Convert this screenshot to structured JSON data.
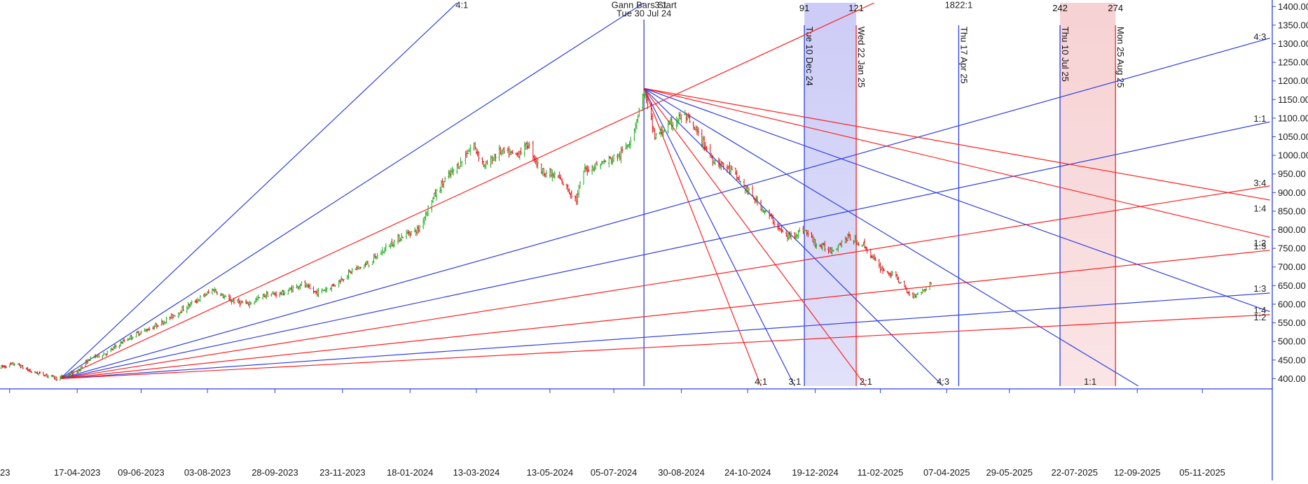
{
  "chart_data": {
    "type": "candlestick",
    "title": "",
    "xlabel": "",
    "ylabel": "",
    "ylim": [
      380,
      1410
    ],
    "x_date_range": [
      "2023-02-12",
      "2026-01-02"
    ],
    "grid": false,
    "y_ticks": [
      "1400.00",
      "1350.00",
      "1300.00",
      "1250.00",
      "1200.00",
      "1150.00",
      "1100.00",
      "1050.00",
      "1000.00",
      "950.00",
      "900.00",
      "850.00",
      "800.00",
      "750.00",
      "700.00",
      "650.00",
      "600.00",
      "550.00",
      "500.00",
      "450.00",
      "400.00"
    ],
    "x_ticks": [
      {
        "date": "2023-02-20",
        "label": "23"
      },
      {
        "date": "2023-04-17",
        "label": "17-04-2023"
      },
      {
        "date": "2023-06-09",
        "label": "09-06-2023"
      },
      {
        "date": "2023-08-03",
        "label": "03-08-2023"
      },
      {
        "date": "2023-09-28",
        "label": "28-09-2023"
      },
      {
        "date": "2023-11-23",
        "label": "23-11-2023"
      },
      {
        "date": "2024-01-18",
        "label": "18-01-2024"
      },
      {
        "date": "2024-03-13",
        "label": "13-03-2024"
      },
      {
        "date": "2024-05-13",
        "label": "13-05-2024"
      },
      {
        "date": "2024-07-05",
        "label": "05-07-2024"
      },
      {
        "date": "2024-08-30",
        "label": "30-08-2024"
      },
      {
        "date": "2024-10-24",
        "label": "24-10-2024"
      },
      {
        "date": "2024-12-19",
        "label": "19-12-2024"
      },
      {
        "date": "2025-02-11",
        "label": "11-02-2025"
      },
      {
        "date": "2025-04-07",
        "label": "07-04-2025"
      },
      {
        "date": "2025-05-29",
        "label": "29-05-2025"
      },
      {
        "date": "2025-07-22",
        "label": "22-07-2025"
      },
      {
        "date": "2025-09-12",
        "label": "12-09-2025"
      },
      {
        "date": "2025-11-05",
        "label": "05-11-2025"
      }
    ],
    "price_path": [
      [
        "2023-02-12",
        430
      ],
      [
        "2023-02-25",
        440
      ],
      [
        "2023-03-10",
        418
      ],
      [
        "2023-03-22",
        410
      ],
      [
        "2023-04-01",
        400
      ],
      [
        "2023-04-17",
        420
      ],
      [
        "2023-04-28",
        455
      ],
      [
        "2023-05-12",
        470
      ],
      [
        "2023-05-25",
        500
      ],
      [
        "2023-06-05",
        520
      ],
      [
        "2023-06-20",
        540
      ],
      [
        "2023-07-05",
        568
      ],
      [
        "2023-07-20",
        600
      ],
      [
        "2023-08-01",
        625
      ],
      [
        "2023-08-08",
        640
      ],
      [
        "2023-08-20",
        612
      ],
      [
        "2023-09-05",
        600
      ],
      [
        "2023-09-20",
        625
      ],
      [
        "2023-10-05",
        630
      ],
      [
        "2023-10-20",
        655
      ],
      [
        "2023-11-01",
        630
      ],
      [
        "2023-11-15",
        650
      ],
      [
        "2023-12-01",
        690
      ],
      [
        "2023-12-15",
        710
      ],
      [
        "2024-01-01",
        760
      ],
      [
        "2024-01-15",
        790
      ],
      [
        "2024-01-25",
        800
      ],
      [
        "2024-02-05",
        880
      ],
      [
        "2024-02-15",
        930
      ],
      [
        "2024-03-01",
        985
      ],
      [
        "2024-03-10",
        1030
      ],
      [
        "2024-03-20",
        970
      ],
      [
        "2024-04-01",
        1010
      ],
      [
        "2024-04-15",
        1000
      ],
      [
        "2024-04-25",
        1030
      ],
      [
        "2024-05-05",
        960
      ],
      [
        "2024-05-20",
        940
      ],
      [
        "2024-06-04",
        880
      ],
      [
        "2024-06-10",
        960
      ],
      [
        "2024-06-25",
        980
      ],
      [
        "2024-07-10",
        1000
      ],
      [
        "2024-07-20",
        1050
      ],
      [
        "2024-07-30",
        1170
      ],
      [
        "2024-08-08",
        1050
      ],
      [
        "2024-08-20",
        1080
      ],
      [
        "2024-09-01",
        1110
      ],
      [
        "2024-09-12",
        1060
      ],
      [
        "2024-09-25",
        990
      ],
      [
        "2024-10-10",
        960
      ],
      [
        "2024-10-25",
        900
      ],
      [
        "2024-11-10",
        840
      ],
      [
        "2024-11-25",
        780
      ],
      [
        "2024-12-10",
        800
      ],
      [
        "2024-12-20",
        760
      ],
      [
        "2025-01-01",
        745
      ],
      [
        "2025-01-15",
        780
      ],
      [
        "2025-01-28",
        760
      ],
      [
        "2025-02-10",
        700
      ],
      [
        "2025-02-25",
        670
      ],
      [
        "2025-03-08",
        620
      ],
      [
        "2025-03-20",
        640
      ],
      [
        "2025-03-25",
        660
      ]
    ],
    "gann_fans": [
      {
        "origin": [
          "2023-04-03",
          400
        ],
        "lines": [
          {
            "to": [
              "2024-02-26",
              1410
            ],
            "color": "#2f3fe0"
          },
          {
            "to": [
              "2024-07-30",
              1410
            ],
            "color": "#2f3fe0"
          },
          {
            "to": [
              "2025-02-06",
              1410
            ],
            "color": "#ff2020"
          },
          {
            "to": [
              "2025-12-31",
              1315
            ],
            "color": "#2f3fe0"
          },
          {
            "to": [
              "2025-12-31",
              1090
            ],
            "color": "#2f3fe0"
          },
          {
            "to": [
              "2025-12-31",
              918
            ],
            "color": "#ff2020"
          },
          {
            "to": [
              "2025-12-31",
              745
            ],
            "color": "#ff2020"
          },
          {
            "to": [
              "2025-12-31",
              630
            ],
            "color": "#2f3fe0"
          },
          {
            "to": [
              "2025-12-31",
              572
            ],
            "color": "#ff2020"
          }
        ]
      },
      {
        "origin": [
          "2024-07-30",
          1180
        ],
        "lines": [
          {
            "to": [
              "2025-12-31",
              880
            ],
            "color": "#ff2020"
          },
          {
            "to": [
              "2025-12-31",
              780
            ],
            "color": "#ff2020"
          },
          {
            "to": [
              "2025-12-31",
              580
            ],
            "color": "#2f3fe0"
          },
          {
            "to": [
              "2025-09-13",
              380
            ],
            "color": "#2f3fe0"
          },
          {
            "to": [
              "2025-04-04",
              380
            ],
            "color": "#2f3fe0"
          },
          {
            "to": [
              "2025-01-30",
              380
            ],
            "color": "#ff2020"
          },
          {
            "to": [
              "2024-12-02",
              380
            ],
            "color": "#2f3fe0"
          },
          {
            "to": [
              "2024-11-04",
              380
            ],
            "color": "#ff2020"
          }
        ]
      }
    ],
    "shaded_zones": [
      {
        "start": "2024-12-10",
        "end": "2025-01-22",
        "color": "#c9c9f6"
      },
      {
        "start": "2025-07-10",
        "end": "2025-08-25",
        "color": "#f6cfd1"
      }
    ],
    "vertical_lines": [
      {
        "date": "2024-07-30",
        "color": "#2f3fe0",
        "label": "",
        "count": ""
      },
      {
        "date": "2024-12-10",
        "color": "#2f3fe0",
        "label": "Tue 10 Dec 24",
        "count": "91"
      },
      {
        "date": "2025-01-22",
        "color": "#ff2020",
        "label": "Wed 22 Jan 25",
        "count": "121"
      },
      {
        "date": "2025-04-17",
        "color": "#2f3fe0",
        "label": "Thu 17 Apr 25",
        "count": ""
      },
      {
        "date": "2025-07-10",
        "color": "#2f3fe0",
        "label": "Thu 10 Jul 25",
        "count": "242"
      },
      {
        "date": "2025-08-25",
        "color": "#ff2020",
        "label": "Mon 25 Aug 25",
        "count": "274"
      }
    ],
    "annotations": [
      {
        "text": "4:1",
        "date": "2024-03-01",
        "y": 1405
      },
      {
        "text": "Gann Bars Start",
        "date": "2024-07-30",
        "y": 1405
      },
      {
        "text": "Tue 30 Jul 24",
        "date": "2024-07-30",
        "y": 1383
      },
      {
        "text": "3:1",
        "date": "2024-08-13",
        "y": 1405
      },
      {
        "text": "1822:1",
        "date": "2025-04-17",
        "y": 1405
      },
      {
        "text": "4:3",
        "date": "2025-12-28",
        "y": 1320
      },
      {
        "text": "1:1",
        "date": "2025-12-28",
        "y": 1100
      },
      {
        "text": "3:4",
        "date": "2025-12-28",
        "y": 927
      },
      {
        "text": "1:4",
        "date": "2025-12-28",
        "y": 858
      },
      {
        "text": "1:2",
        "date": "2025-12-28",
        "y": 765
      },
      {
        "text": "1:3",
        "date": "2025-12-28",
        "y": 757
      },
      {
        "text": "1:3",
        "date": "2025-12-28",
        "y": 643
      },
      {
        "text": "1:4",
        "date": "2025-12-28",
        "y": 585
      },
      {
        "text": "1:2",
        "date": "2025-12-28",
        "y": 566
      },
      {
        "text": "4:1",
        "date": "2024-11-04",
        "y": 393
      },
      {
        "text": "3:1",
        "date": "2024-12-02",
        "y": 393
      },
      {
        "text": "2:1",
        "date": "2025-01-30",
        "y": 393
      },
      {
        "text": "4:3",
        "date": "2025-04-04",
        "y": 393
      },
      {
        "text": "1:1",
        "date": "2025-08-04",
        "y": 393
      }
    ],
    "colors": {
      "up": "#1faa1f",
      "down": "#e01010",
      "axis": "#2f3fe0",
      "text": "#1a1a1a"
    }
  }
}
